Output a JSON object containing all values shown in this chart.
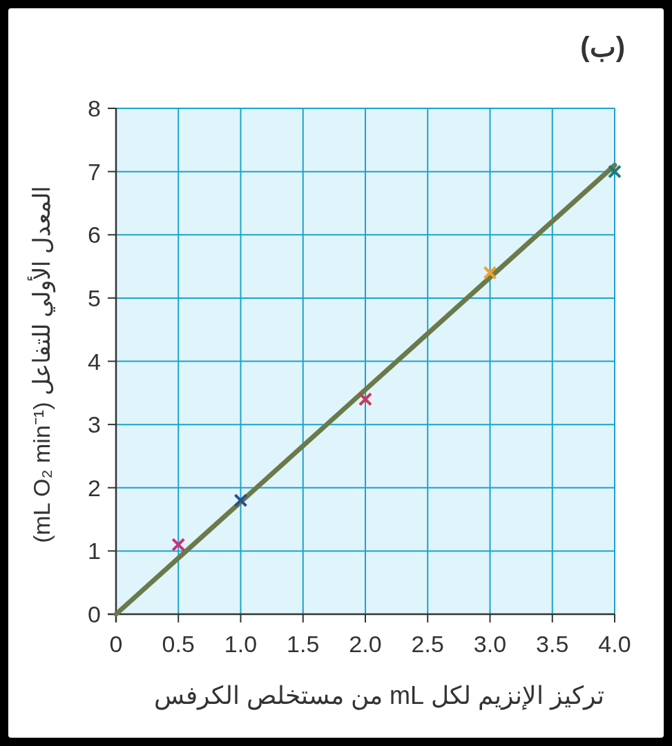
{
  "chart_data": {
    "type": "scatter",
    "title": "(ب)",
    "xlabel": "تركيز الإنزيم لكل mL من مستخلص الكرفس",
    "ylabel": "المعدل الأولي للتفاعل (mL O₂ min⁻¹)",
    "x": [
      0.5,
      1.0,
      2.0,
      3.0,
      4.0
    ],
    "series": [
      {
        "type": "scatter",
        "values": [
          1.1,
          1.8,
          3.4,
          5.4,
          7.0
        ],
        "colors": [
          "#c8327d",
          "#2a4f8c",
          "#c83a5a",
          "#f0a030",
          "#1f7a78"
        ],
        "marker": "cross"
      },
      {
        "type": "line",
        "x": [
          0,
          4.0
        ],
        "values": [
          0,
          7.1
        ],
        "color": "#6b7a4a",
        "line_style": "solid"
      }
    ],
    "xlim": [
      0,
      4.0
    ],
    "ylim": [
      0,
      8
    ],
    "xticks": [
      0,
      0.5,
      {
        "value": 1.0,
        "label": "1.0"
      },
      1.5,
      {
        "value": 2.0,
        "label": "2.0"
      },
      2.5,
      {
        "value": 3.0,
        "label": "3.0"
      },
      3.5,
      {
        "value": 4.0,
        "label": "4.0"
      }
    ],
    "yticks": [
      0,
      1,
      2,
      3,
      4,
      5,
      6,
      7,
      8
    ],
    "grid": true
  }
}
